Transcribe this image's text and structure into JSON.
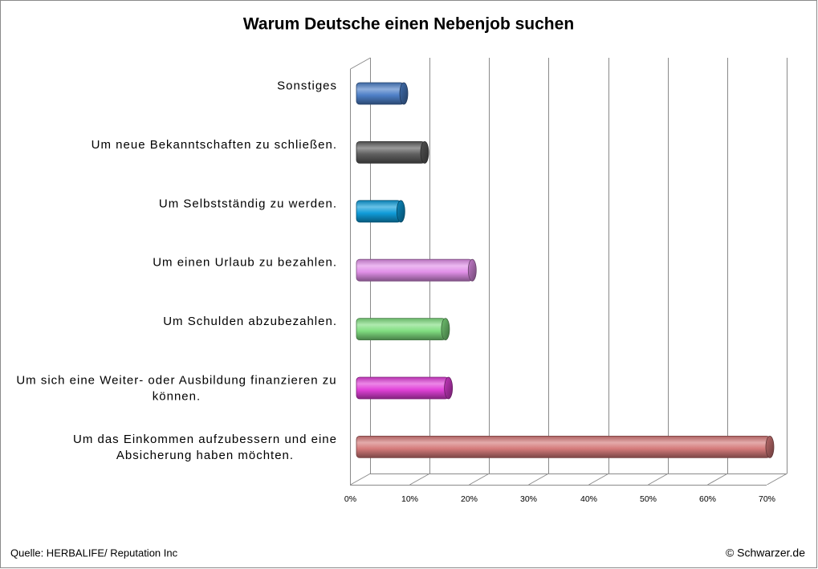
{
  "footer": {
    "source": "Quelle: HERBALIFE/ Reputation Inc",
    "copyright": "© Schwarzer.de"
  },
  "chart_data": {
    "type": "bar",
    "orientation": "horizontal",
    "3d": true,
    "title": "Warum Deutsche einen Nebenjob suchen",
    "categories": [
      "Sonstiges",
      "Um neue Bekanntschaften zu schließen.",
      "Um Selbstständig zu werden.",
      "Um einen Urlaub zu bezahlen.",
      "Um Schulden abzubezahlen.",
      "Um sich eine Weiter- oder Ausbildung finanzieren zu können.",
      "Um das Einkommen aufzubessern und eine Absicherung haben möchten."
    ],
    "values": [
      8.5,
      12,
      8,
      20,
      15.5,
      16,
      70
    ],
    "colors": [
      "#4a7dc6",
      "#5c5c5c",
      "#0c9bd9",
      "#e08ee8",
      "#7edd7e",
      "#e03ed8",
      "#d47878"
    ],
    "xlim": [
      0,
      70
    ],
    "x_ticks": [
      "0%",
      "10%",
      "20%",
      "30%",
      "40%",
      "50%",
      "60%",
      "70%"
    ],
    "grid": true,
    "legend": false
  }
}
